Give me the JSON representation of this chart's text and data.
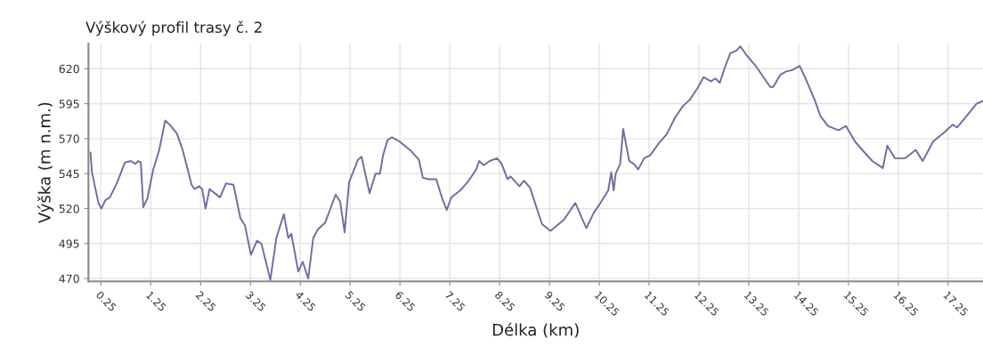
{
  "chart_data": {
    "type": "line",
    "title": "Výškový profil trasy č. 2",
    "xlabel": "Délka (km)",
    "ylabel": "Výška (m n.m.)",
    "xlim": [
      0,
      17.95
    ],
    "ylim": [
      468,
      638
    ],
    "xticks": [
      0.25,
      1.25,
      2.25,
      3.25,
      4.25,
      5.25,
      6.25,
      7.25,
      8.25,
      9.25,
      10.25,
      11.25,
      12.25,
      13.25,
      14.25,
      15.25,
      16.25,
      17.25
    ],
    "yticks": [
      470,
      495,
      520,
      545,
      570,
      595,
      620
    ],
    "grid": true,
    "legend": false,
    "marker": "none",
    "line_style": "solid",
    "series": [
      {
        "color": "#6e6e9e",
        "x": [
          0.04,
          0.07,
          0.2,
          0.26,
          0.34,
          0.43,
          0.58,
          0.73,
          0.85,
          0.94,
          1.0,
          1.05,
          1.1,
          1.18,
          1.3,
          1.42,
          1.54,
          1.63,
          1.77,
          1.89,
          2.07,
          2.13,
          2.22,
          2.28,
          2.35,
          2.43,
          2.64,
          2.76,
          2.91,
          3.05,
          3.14,
          3.26,
          3.38,
          3.47,
          3.65,
          3.77,
          3.92,
          4.01,
          4.07,
          4.21,
          4.3,
          4.41,
          4.51,
          4.6,
          4.75,
          4.96,
          5.05,
          5.14,
          5.23,
          5.41,
          5.48,
          5.64,
          5.76,
          5.85,
          5.91,
          6.0,
          6.09,
          6.24,
          6.45,
          6.63,
          6.71,
          6.83,
          6.98,
          7.1,
          7.19,
          7.28,
          7.46,
          7.63,
          7.78,
          7.84,
          7.93,
          8.05,
          8.2,
          8.29,
          8.41,
          8.47,
          8.65,
          8.74,
          8.86,
          9.1,
          9.27,
          9.54,
          9.77,
          9.99,
          10.14,
          10.29,
          10.43,
          10.49,
          10.54,
          10.58,
          10.67,
          10.73,
          10.85,
          10.94,
          11.03,
          11.15,
          11.27,
          11.45,
          11.6,
          11.77,
          11.92,
          12.07,
          12.22,
          12.34,
          12.49,
          12.58,
          12.67,
          12.76,
          12.88,
          13.0,
          13.08,
          13.2,
          13.41,
          13.68,
          13.74,
          13.89,
          14.0,
          14.12,
          14.27,
          14.39,
          14.57,
          14.69,
          14.84,
          15.05,
          15.2,
          15.38,
          15.55,
          15.73,
          15.94,
          16.03,
          16.18,
          16.39,
          16.6,
          16.74,
          16.95,
          17.19,
          17.34,
          17.43,
          17.64,
          17.82,
          17.95
        ],
        "values": [
          560,
          546,
          524,
          520,
          526,
          528,
          539,
          553,
          554,
          552,
          554,
          553,
          521,
          527,
          548,
          562,
          583,
          580,
          574,
          562,
          537,
          534,
          536,
          534,
          520,
          534,
          528,
          538,
          537,
          513,
          508,
          487,
          497,
          495,
          469,
          499,
          516,
          499,
          502,
          475,
          482,
          470,
          499,
          505,
          510,
          530,
          525,
          503,
          539,
          555,
          557,
          531,
          545,
          545,
          558,
          569,
          571,
          568,
          562,
          555,
          542,
          541,
          541,
          527,
          519,
          528,
          533,
          540,
          548,
          554,
          551,
          554,
          556,
          552,
          541,
          543,
          536,
          540,
          535,
          509,
          504,
          512,
          524,
          506,
          517,
          525,
          533,
          546,
          533,
          545,
          552,
          577,
          554,
          552,
          548,
          556,
          558,
          567,
          573,
          585,
          593,
          598,
          606,
          614,
          611,
          613,
          610,
          620,
          631,
          633,
          636,
          630,
          621,
          607,
          607,
          616,
          618,
          619,
          622,
          613,
          598,
          586,
          579,
          576,
          579,
          568,
          561,
          554,
          549,
          565,
          556,
          556,
          562,
          554,
          568,
          575,
          580,
          578,
          587,
          595,
          597
        ]
      }
    ]
  }
}
